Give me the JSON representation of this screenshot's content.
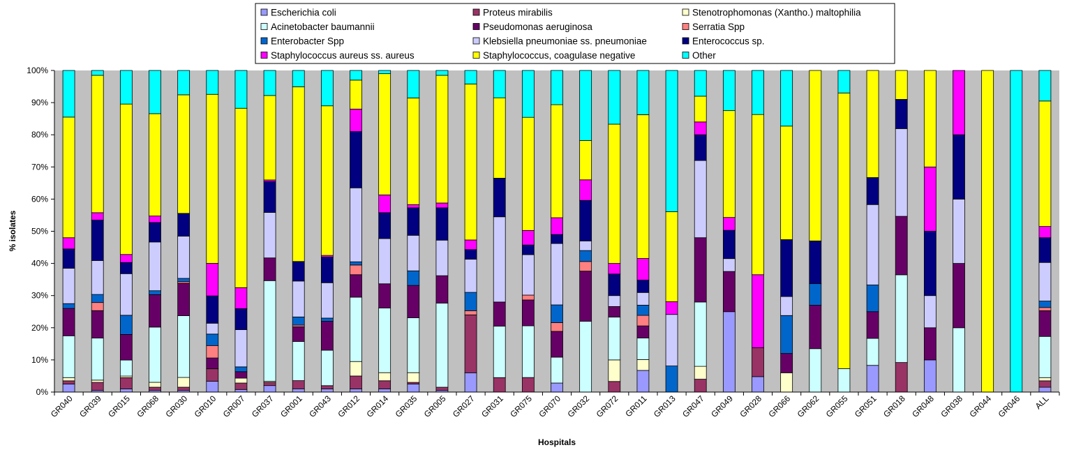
{
  "chart_data": {
    "type": "bar",
    "stacked": "percent",
    "xlabel": "Hospitals",
    "ylabel": "% isolates",
    "ylim": [
      0,
      100
    ],
    "yticks": [
      "0%",
      "10%",
      "20%",
      "30%",
      "40%",
      "50%",
      "60%",
      "70%",
      "80%",
      "90%",
      "100%"
    ],
    "grid": false,
    "legend_position": "top",
    "categories": [
      "GR040",
      "GR039",
      "GR015",
      "GR068",
      "GR030",
      "GR010",
      "GR007",
      "GR037",
      "GR001",
      "GR043",
      "GR012",
      "GR014",
      "GR035",
      "GR005",
      "GR027",
      "GR031",
      "GR075",
      "GR070",
      "GR032",
      "GR072",
      "GR011",
      "GR013",
      "GR047",
      "GR049",
      "GR028",
      "GR066",
      "GR062",
      "GR055",
      "GR051",
      "GR018",
      "GR048",
      "GR038",
      "GR044",
      "GR046",
      "ALL"
    ],
    "series": [
      {
        "name": "Escherichia coli",
        "color": "#9999ff",
        "values": [
          2.5,
          0.5,
          1,
          0.5,
          0.5,
          3.5,
          0.8,
          2,
          1,
          1,
          1,
          1,
          2.5,
          0.5,
          6,
          0,
          0,
          2.8,
          0,
          0,
          7,
          0,
          0,
          25,
          4.8,
          0,
          0,
          0,
          8.3,
          0,
          10,
          0,
          0,
          0,
          1.5
        ]
      },
      {
        "name": "Proteus mirabilis",
        "color": "#993366",
        "values": [
          1,
          2.5,
          3.5,
          1,
          1,
          4,
          2,
          1,
          2.5,
          1,
          4,
          2.5,
          0.5,
          1,
          18,
          4.5,
          4.5,
          0,
          0,
          3.3,
          0,
          0,
          4,
          0,
          9,
          0,
          0,
          0,
          0,
          9.2,
          0,
          0,
          0,
          0,
          2
        ]
      },
      {
        "name": "Stenotrophomonas (Xantho.) maltophilia",
        "color": "#ffffcc",
        "values": [
          1,
          0.7,
          0.5,
          1.5,
          3,
          0,
          1.5,
          0.3,
          0,
          0,
          4.5,
          2.5,
          3,
          0,
          0,
          0,
          0,
          0,
          0,
          6.7,
          3.5,
          0,
          4,
          0,
          0,
          6,
          0,
          0,
          0,
          0,
          0,
          0,
          0,
          0,
          1
        ]
      },
      {
        "name": "Acinetobacter baumannii",
        "color": "#ccffff",
        "values": [
          13,
          13,
          5,
          17,
          19,
          0,
          0,
          31,
          12,
          11,
          20,
          20,
          17,
          26,
          0,
          16,
          16,
          8,
          22,
          13.3,
          7,
          0,
          20,
          0,
          0,
          0,
          13.5,
          7.3,
          8.4,
          27.3,
          0,
          20,
          0,
          0,
          12.8
        ]
      },
      {
        "name": "Pseudomonas aeruginosa",
        "color": "#660066",
        "values": [
          8.5,
          8.5,
          8,
          10,
          10,
          3.5,
          2,
          7,
          4.5,
          9,
          7,
          7.5,
          10,
          8.5,
          0,
          7.5,
          8,
          8,
          15.6,
          3.3,
          3.9,
          0,
          20,
          12.5,
          0,
          6,
          13.5,
          0,
          8.3,
          18.2,
          10,
          20,
          0,
          0,
          8
        ]
      },
      {
        "name": "Serratia Spp",
        "color": "#ff8080",
        "values": [
          0,
          2.5,
          0,
          0,
          0.5,
          4,
          0,
          0,
          0.5,
          0,
          3,
          0,
          0,
          0,
          1.3,
          0,
          1.5,
          2.7,
          3,
          0,
          3.4,
          0,
          0,
          0,
          0,
          0,
          0,
          0,
          0,
          0,
          0,
          0,
          0,
          0,
          1
        ]
      },
      {
        "name": "Enterobacter Spp",
        "color": "#0066cc",
        "values": [
          1.5,
          2.5,
          6,
          1.2,
          1,
          3.7,
          1.5,
          0,
          2.5,
          1,
          1,
          0,
          4.5,
          0,
          5.7,
          0,
          0,
          5.5,
          3.4,
          0,
          3.3,
          7.8,
          0,
          0,
          0,
          11.8,
          6.7,
          0,
          8.3,
          0,
          0,
          0,
          0,
          0,
          2
        ]
      },
      {
        "name": "Klebsiella pneumoniae ss. pneumoniae",
        "color": "#ccccff",
        "values": [
          11,
          10.5,
          13,
          15,
          13,
          3.5,
          11.5,
          14,
          11,
          11,
          23,
          14,
          11,
          11,
          10.3,
          26.5,
          12.5,
          19,
          3,
          3.4,
          4.1,
          15.4,
          24,
          4,
          0,
          5.9,
          0,
          0,
          25,
          27.3,
          10,
          20,
          0,
          0,
          12
        ]
      },
      {
        "name": "Enterococcus sp.",
        "color": "#000080",
        "values": [
          6,
          12.5,
          3.5,
          6,
          7,
          8.8,
          6.5,
          9.5,
          6,
          8,
          17.5,
          8,
          8.5,
          10,
          3,
          12,
          3,
          2.8,
          12.6,
          6.7,
          4,
          0,
          8,
          8.8,
          0,
          17.7,
          13.3,
          0,
          8.4,
          9.1,
          20,
          20,
          0,
          0,
          7.7
        ]
      },
      {
        "name": "Staphylococcus aureus ss. aureus",
        "color": "#ff00ff",
        "values": [
          3.5,
          2.3,
          2.5,
          2,
          0,
          10.5,
          6.5,
          0.5,
          0,
          0.5,
          7,
          5.5,
          1,
          1.5,
          3,
          0,
          4.5,
          5.2,
          6.4,
          3.3,
          7,
          3.8,
          4,
          4,
          22.7,
          0,
          0,
          0,
          0,
          0,
          20,
          20,
          0,
          0,
          3.5
        ]
      },
      {
        "name": "Staphylococcus, coagulase negative",
        "color": "#ffff00",
        "values": [
          37.5,
          42.5,
          47,
          31.5,
          36.5,
          54.5,
          55.5,
          26,
          53.5,
          46.5,
          9,
          37.5,
          33,
          39.5,
          48.5,
          25,
          35,
          35,
          12.2,
          43.3,
          46.5,
          26.9,
          8,
          33.2,
          49.8,
          35.3,
          53,
          85.7,
          33.3,
          9,
          30,
          0,
          100,
          0,
          39
        ]
      },
      {
        "name": "Other",
        "color": "#00ffff",
        "values": [
          14.5,
          1.5,
          10.5,
          13.3,
          7.5,
          7.7,
          11.7,
          7.7,
          5,
          11,
          3,
          1,
          8.5,
          1.5,
          4.2,
          8.5,
          14.5,
          10.6,
          21.8,
          16.7,
          14.3,
          42.2,
          8,
          12.5,
          13.7,
          17.3,
          0,
          7,
          0,
          0,
          0,
          0,
          0,
          100,
          9.5
        ]
      }
    ]
  }
}
